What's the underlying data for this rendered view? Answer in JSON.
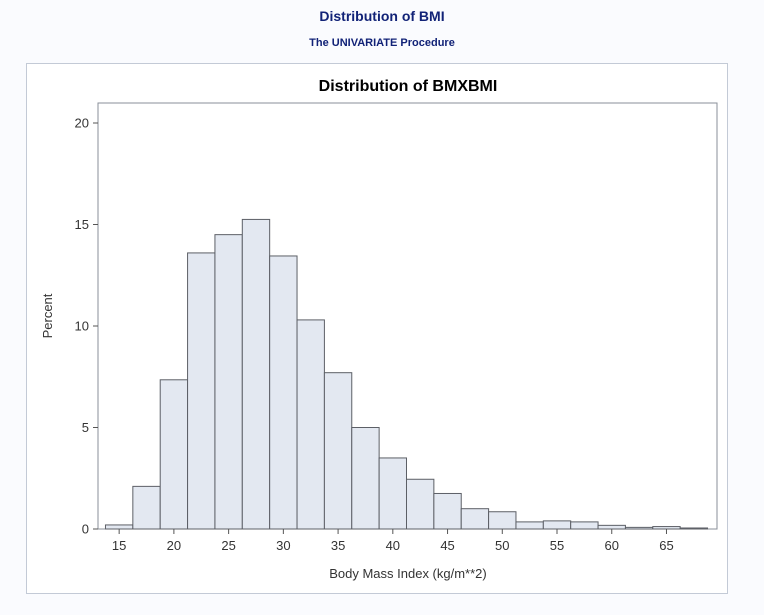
{
  "header": {
    "title": "Distribution of BMI",
    "procedure": "The UNIVARIATE Procedure"
  },
  "colors": {
    "bar_fill": "#e3e8f1",
    "bar_stroke": "#5c5f66",
    "title_blue": "#112277"
  },
  "chart_data": {
    "type": "bar",
    "title": "Distribution of BMXBMI",
    "xlabel": "Body Mass Index (kg/m**2)",
    "ylabel": "Percent",
    "bin_width": 2.5,
    "bin_midpoints": [
      15,
      17.5,
      20,
      22.5,
      25,
      27.5,
      30,
      32.5,
      35,
      37.5,
      40,
      42.5,
      45,
      47.5,
      50,
      52.5,
      55,
      57.5,
      60,
      62.5,
      65,
      67.5
    ],
    "values": [
      0.2,
      2.1,
      7.35,
      13.6,
      14.5,
      15.25,
      13.45,
      10.3,
      7.7,
      5.0,
      3.5,
      2.45,
      1.75,
      1.0,
      0.85,
      0.35,
      0.4,
      0.35,
      0.18,
      0.08,
      0.12,
      0.05
    ],
    "xlim": [
      13.25,
      69.25
    ],
    "ylim": [
      0,
      20
    ],
    "x_ticks": [
      "15",
      "20",
      "25",
      "30",
      "35",
      "40",
      "45",
      "50",
      "55",
      "60",
      "65"
    ],
    "y_ticks": [
      "0",
      "5",
      "10",
      "15",
      "20"
    ],
    "grid": false
  }
}
